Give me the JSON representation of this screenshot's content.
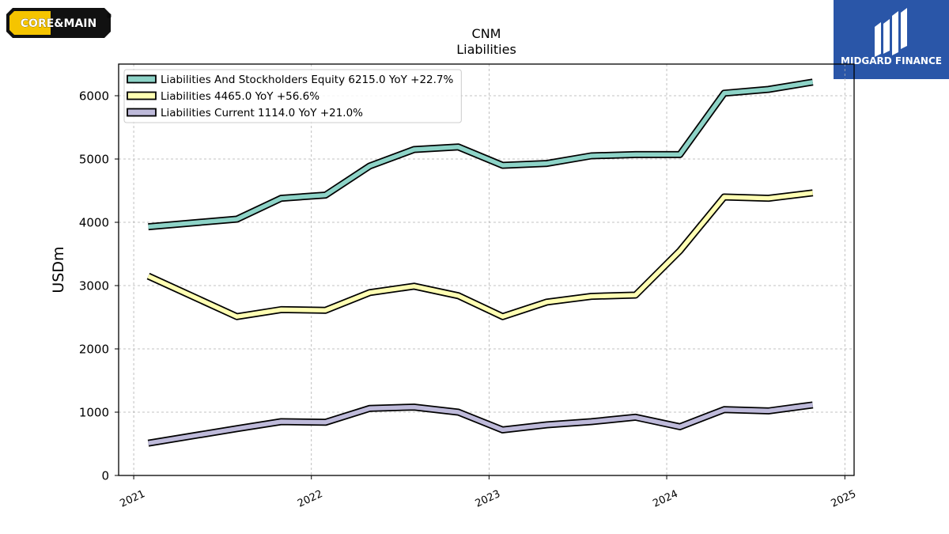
{
  "brand": {
    "left_logo_text": "CORE&MAIN",
    "left_logo_mark": "®",
    "right_logo_text": "MIDGARD FINANCE",
    "right_logo_bg": "#2a56a8"
  },
  "chart_data": {
    "type": "line",
    "title": "CNM",
    "subtitle": "Liabilities",
    "xlabel": "",
    "ylabel": "USDm",
    "ylim": [
      0,
      6500
    ],
    "xlim": [
      "2020-12-01",
      "2025-01-20"
    ],
    "yticks": [
      0,
      1000,
      2000,
      3000,
      4000,
      5000,
      6000
    ],
    "xticks": [
      "2021-01-01",
      "2022-01-01",
      "2023-01-01",
      "2024-01-01",
      "2025-01-01"
    ],
    "xtick_labels": [
      "2021",
      "2022",
      "2023",
      "2024",
      "2025"
    ],
    "grid": true,
    "legend_position": "top-left",
    "x": [
      "2021-01-31",
      "2021-08-01",
      "2021-10-31",
      "2022-01-30",
      "2022-05-01",
      "2022-07-31",
      "2022-10-30",
      "2023-01-29",
      "2023-04-30",
      "2023-07-30",
      "2023-10-29",
      "2024-01-28",
      "2024-04-28",
      "2024-07-28",
      "2024-10-27"
    ],
    "series": [
      {
        "name": "Liabilities And Stockholders Equity",
        "legend_label": "Liabilities And Stockholders Equity  6215.0 YoY +22.7%",
        "color": "#8dd3c7",
        "values": [
          3930,
          4050,
          4380,
          4430,
          4890,
          5150,
          5190,
          4900,
          4930,
          5050,
          5070,
          5070,
          6040,
          6100,
          6215
        ]
      },
      {
        "name": "Liabilities",
        "legend_label": "Liabilities  4465.0 YoY +56.6%",
        "color": "#ffffb3",
        "values": [
          3150,
          2510,
          2620,
          2610,
          2890,
          2990,
          2840,
          2510,
          2740,
          2830,
          2850,
          3550,
          4400,
          4380,
          4465
        ]
      },
      {
        "name": "Liabilities Current",
        "legend_label": "Liabilities Current  1114.0 YoY +21.0%",
        "color": "#bebada",
        "values": [
          510,
          740,
          850,
          840,
          1060,
          1080,
          1000,
          720,
          800,
          850,
          920,
          770,
          1040,
          1020,
          1114
        ]
      }
    ]
  }
}
